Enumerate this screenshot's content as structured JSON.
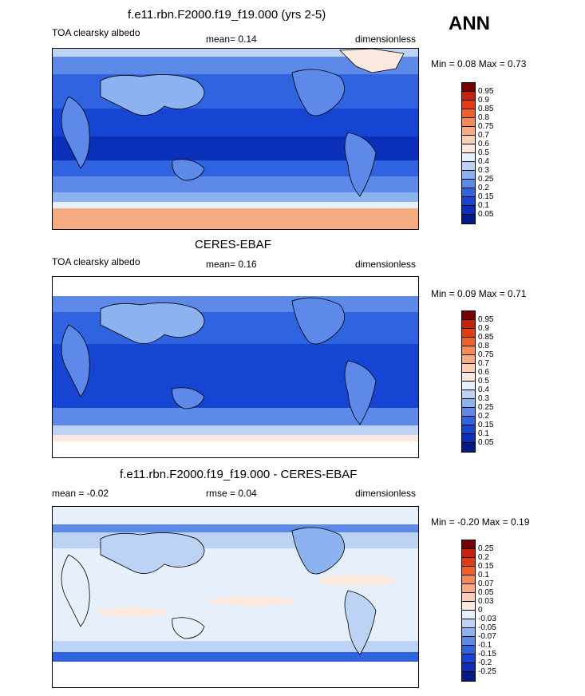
{
  "season": "ANN",
  "panels": [
    {
      "title": "f.e11.rbn.F2000.f19_f19.000 (yrs 2-5)",
      "left_label": "TOA clearsky albedo",
      "center_label": "mean=  0.14",
      "right_label": "dimensionless",
      "minmax": "Min =  0.08 Max =  0.73",
      "colorbar_labels": [
        "0.95",
        "0.9",
        "0.85",
        "0.8",
        "0.75",
        "0.7",
        "0.6",
        "0.5",
        "0.4",
        "0.3",
        "0.25",
        "0.2",
        "0.15",
        "0.1",
        "0.05"
      ],
      "colorbar_colors": [
        "#7a0000",
        "#c8200a",
        "#e63a12",
        "#f0602a",
        "#f48a55",
        "#f6ab80",
        "#f8cfb2",
        "#fbe9df",
        "#e6effa",
        "#bcd3f5",
        "#8cb2ef",
        "#5d8ae8",
        "#2f63e0",
        "#1644d3",
        "#0a2fb8",
        "#021a87"
      ]
    },
    {
      "title": "CERES-EBAF",
      "left_label": "TOA clearsky albedo",
      "center_label": "mean=  0.16",
      "right_label": "dimensionless",
      "minmax": "Min =  0.09 Max =  0.71",
      "colorbar_labels": [
        "0.95",
        "0.9",
        "0.85",
        "0.8",
        "0.75",
        "0.7",
        "0.6",
        "0.5",
        "0.4",
        "0.3",
        "0.25",
        "0.2",
        "0.15",
        "0.1",
        "0.05"
      ],
      "colorbar_colors": [
        "#7a0000",
        "#c8200a",
        "#e63a12",
        "#f0602a",
        "#f48a55",
        "#f6ab80",
        "#f8cfb2",
        "#fbe9df",
        "#e6effa",
        "#bcd3f5",
        "#8cb2ef",
        "#5d8ae8",
        "#2f63e0",
        "#1644d3",
        "#0a2fb8",
        "#021a87"
      ]
    },
    {
      "title": "f.e11.rbn.F2000.f19_f19.000 - CERES-EBAF",
      "left_label": "mean =  -0.02",
      "center_label": "rmse =  0.04",
      "right_label": "dimensionless",
      "minmax": "Min =  -0.20 Max =  0.19",
      "colorbar_labels": [
        "0.25",
        "0.2",
        "0.15",
        "0.1",
        "0.07",
        "0.05",
        "0.03",
        "0",
        "-0.03",
        "-0.05",
        "-0.07",
        "-0.1",
        "-0.15",
        "-0.2",
        "-0.25"
      ],
      "colorbar_colors": [
        "#7a0000",
        "#c8200a",
        "#e63a12",
        "#f0602a",
        "#f48a55",
        "#f6ab80",
        "#f8cfb2",
        "#fbe9df",
        "#e6effa",
        "#bcd3f5",
        "#8cb2ef",
        "#5d8ae8",
        "#2f63e0",
        "#1644d3",
        "#0a2fb8",
        "#021a87"
      ]
    }
  ]
}
